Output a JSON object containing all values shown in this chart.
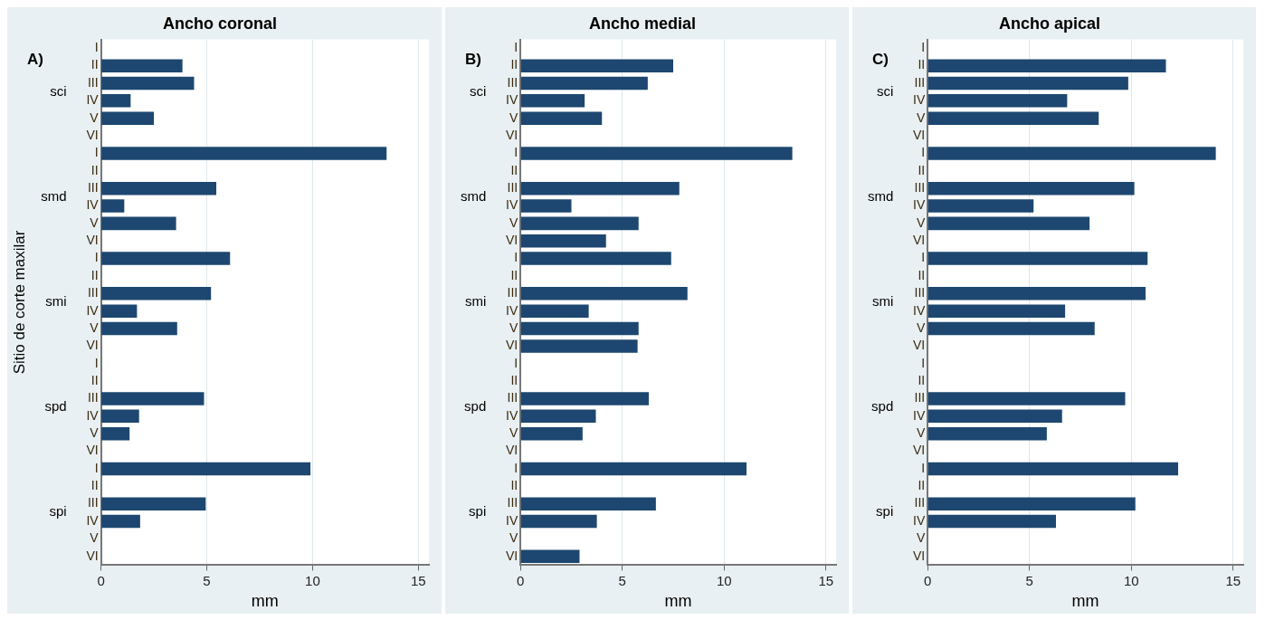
{
  "chart_data": [
    {
      "type": "bar",
      "orientation": "horizontal",
      "title": "Ancho coronal",
      "xlabel": "mm",
      "ylabel": "Sitio de corte maxilar",
      "annotations": [
        "A)",
        "sci",
        "smd",
        "smi",
        "spd",
        "spi"
      ],
      "categories": [
        "I",
        "II",
        "III",
        "IV",
        "V",
        "VI",
        "I",
        "II",
        "III",
        "IV",
        "V",
        "VI",
        "I",
        "II",
        "III",
        "IV",
        "V",
        "VI",
        "I",
        "II",
        "III",
        "IV",
        "V",
        "VI",
        "I",
        "II",
        "III",
        "IV",
        "V",
        "VI"
      ],
      "series": [
        {
          "color": "#1d4770",
          "values": [
            null,
            3.85,
            4.4,
            1.4,
            2.5,
            null,
            13.5,
            null,
            5.45,
            1.1,
            3.55,
            null,
            6.1,
            null,
            5.2,
            1.7,
            3.6,
            null,
            null,
            null,
            4.87,
            1.8,
            1.35,
            null,
            9.9,
            null,
            4.95,
            1.85,
            null,
            null
          ]
        }
      ],
      "xlim": [
        0,
        15.5
      ],
      "xticks": [
        0,
        5,
        10,
        15
      ],
      "grid": "x"
    },
    {
      "type": "bar",
      "orientation": "horizontal",
      "title": "Ancho medial",
      "xlabel": "mm",
      "annotations": [
        "B)",
        "sci",
        "smd",
        "smi",
        "spd",
        "spi"
      ],
      "categories": [
        "I",
        "II",
        "III",
        "IV",
        "V",
        "VI",
        "I",
        "II",
        "III",
        "IV",
        "V",
        "VI",
        "I",
        "II",
        "III",
        "IV",
        "V",
        "VI",
        "I",
        "II",
        "III",
        "IV",
        "V",
        "VI",
        "I",
        "II",
        "III",
        "IV",
        "V",
        "VI"
      ],
      "series": [
        {
          "color": "#1d4770",
          "values": [
            null,
            7.5,
            6.25,
            3.15,
            4.0,
            null,
            13.35,
            null,
            7.8,
            2.5,
            5.8,
            4.2,
            7.4,
            null,
            8.2,
            3.35,
            5.8,
            5.75,
            null,
            null,
            6.3,
            3.7,
            3.05,
            null,
            11.1,
            null,
            6.65,
            3.75,
            null,
            2.9
          ]
        }
      ],
      "xlim": [
        0,
        15.5
      ],
      "xticks": [
        0,
        5,
        10,
        15
      ],
      "grid": "x"
    },
    {
      "type": "bar",
      "orientation": "horizontal",
      "title": "Ancho apical",
      "xlabel": "mm",
      "annotations": [
        "C)",
        "sci",
        "smd",
        "smi",
        "spd",
        "spi"
      ],
      "categories": [
        "I",
        "II",
        "III",
        "IV",
        "V",
        "VI",
        "I",
        "II",
        "III",
        "IV",
        "V",
        "VI",
        "I",
        "II",
        "III",
        "IV",
        "V",
        "VI",
        "I",
        "II",
        "III",
        "IV",
        "V",
        "VI",
        "I",
        "II",
        "III",
        "IV",
        "V",
        "VI"
      ],
      "series": [
        {
          "color": "#1d4770",
          "values": [
            null,
            11.7,
            9.85,
            6.85,
            8.4,
            null,
            14.15,
            null,
            10.15,
            5.2,
            7.95,
            null,
            10.8,
            null,
            10.7,
            6.75,
            8.2,
            null,
            null,
            null,
            9.7,
            6.6,
            5.85,
            null,
            12.3,
            null,
            10.2,
            6.3,
            null,
            null
          ]
        }
      ],
      "xlim": [
        0,
        15.5
      ],
      "xticks": [
        0,
        5,
        10,
        15
      ],
      "grid": "x"
    }
  ]
}
